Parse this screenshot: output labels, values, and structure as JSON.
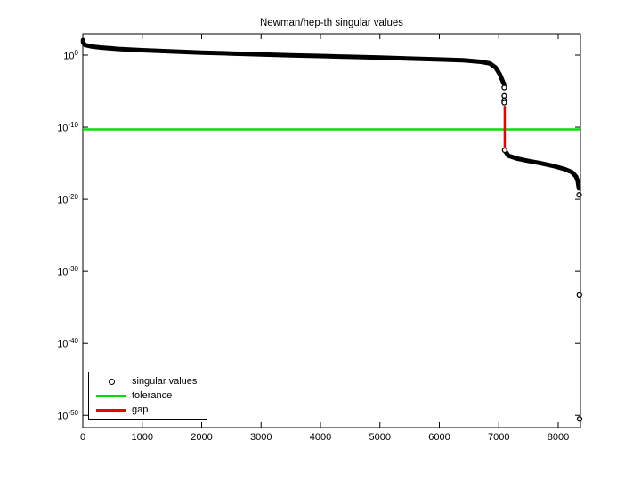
{
  "chart_data": {
    "type": "scatter",
    "title": "Newman/hep-th singular values",
    "xlabel": "",
    "ylabel": "",
    "grid": false,
    "x_axis": {
      "min": 0,
      "max": 8400,
      "ticks": [
        0,
        1000,
        2000,
        3000,
        4000,
        5000,
        6000,
        7000,
        8000
      ]
    },
    "y_axis": {
      "scale": "log10",
      "tick_exponents": [
        0,
        -10,
        -20,
        -30,
        -40,
        -50
      ],
      "range_exponents": [
        -51.6,
        3
      ]
    },
    "series": [
      {
        "name": "singular values",
        "marker": "circle",
        "color": "#000000",
        "dense_curve_log10": [
          [
            3,
            2.1
          ],
          [
            6,
            1.7
          ],
          [
            40,
            1.4
          ],
          [
            150,
            1.2
          ],
          [
            300,
            1.05
          ],
          [
            600,
            0.85
          ],
          [
            1000,
            0.68
          ],
          [
            1500,
            0.5
          ],
          [
            2000,
            0.35
          ],
          [
            2500,
            0.22
          ],
          [
            3000,
            0.1
          ],
          [
            3500,
            -0.02
          ],
          [
            4000,
            -0.12
          ],
          [
            4500,
            -0.23
          ],
          [
            5000,
            -0.35
          ],
          [
            5500,
            -0.48
          ],
          [
            6000,
            -0.6
          ],
          [
            6400,
            -0.7
          ],
          [
            6700,
            -0.92
          ],
          [
            6850,
            -1.15
          ],
          [
            6950,
            -1.75
          ],
          [
            7020,
            -2.7
          ],
          [
            7070,
            -3.7
          ],
          [
            7090,
            -4.05
          ]
        ],
        "dense_curve_tail_log10": [
          [
            7100,
            -13.2
          ],
          [
            7160,
            -13.95
          ],
          [
            7300,
            -14.35
          ],
          [
            7500,
            -14.7
          ],
          [
            7700,
            -15.0
          ],
          [
            7900,
            -15.35
          ],
          [
            8100,
            -15.8
          ],
          [
            8230,
            -16.25
          ],
          [
            8300,
            -16.85
          ],
          [
            8330,
            -17.5
          ],
          [
            8348,
            -18.5
          ]
        ],
        "sparse_points_log10": [
          [
            7092,
            -4.5
          ],
          [
            7092,
            -5.65
          ],
          [
            7092,
            -6.3
          ],
          [
            7092,
            -6.6
          ],
          [
            7100,
            -13.2
          ],
          [
            8352,
            -19.4
          ],
          [
            8357,
            -33.3
          ],
          [
            8360,
            -50.5
          ]
        ]
      }
    ],
    "tolerance": {
      "label": "tolerance",
      "color": "#00e100",
      "value_log10": -10.3,
      "approx_value": "5e-11"
    },
    "gap": {
      "label": "gap",
      "color": "#ee0000",
      "x": 7100,
      "from_log10": -7.05,
      "to_log10": -13.2
    },
    "legend": {
      "position": "south-west",
      "entries": [
        {
          "label": "singular values",
          "marker": "circle",
          "color": "#000000"
        },
        {
          "label": "tolerance",
          "marker": "line",
          "color": "#00e100"
        },
        {
          "label": "gap",
          "marker": "line",
          "color": "#ee0000"
        }
      ]
    }
  }
}
